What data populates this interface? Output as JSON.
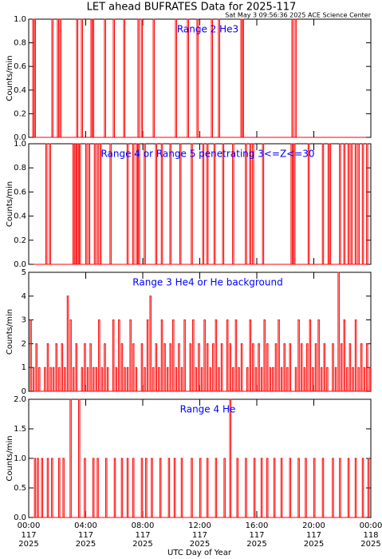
{
  "header": {
    "title": "LET ahead BUFRATES Data for 2025-117",
    "subtitle": "Sat May  3 09:56:36 2025 ACE Science Center"
  },
  "x_axis": {
    "label": "UTC Day of Year",
    "xlim": [
      0,
      24
    ],
    "ticks": [
      {
        "value": 0,
        "label": "00:00",
        "day": "117",
        "year": "2025"
      },
      {
        "value": 4,
        "label": "04:00",
        "day": "117",
        "year": "2025"
      },
      {
        "value": 8,
        "label": "08:00",
        "day": "117",
        "year": "2025"
      },
      {
        "value": 12,
        "label": "12:00",
        "day": "117",
        "year": "2025"
      },
      {
        "value": 16,
        "label": "16:00",
        "day": "117",
        "year": "2025"
      },
      {
        "value": 20,
        "label": "20:00",
        "day": "117",
        "year": "2025"
      },
      {
        "value": 24,
        "label": "00:00",
        "day": "118",
        "year": "2025"
      }
    ]
  },
  "chart_data": [
    {
      "type": "spike",
      "title": "Range 2 He3",
      "ylabel": "Counts/min",
      "color": "#ff0000",
      "title_color": "#0000ff",
      "ylim": [
        0,
        1
      ],
      "yticks": [
        {
          "value": 0,
          "label": "0.0"
        },
        {
          "value": 0.2,
          "label": "0.2"
        },
        {
          "value": 0.4,
          "label": "0.4"
        },
        {
          "value": 0.6,
          "label": "0.6"
        },
        {
          "value": 0.8,
          "label": "0.8"
        },
        {
          "value": 1,
          "label": "1.0"
        }
      ],
      "x": [
        0.28,
        0.39,
        1.62,
        2.01,
        2.18,
        3.36,
        3.69,
        4.36,
        4.48,
        5.31,
        5.93,
        6.66,
        7.66,
        7.89,
        8.73,
        10.29,
        11.13,
        11.8,
        12.81,
        13.31,
        14.88,
        14.99,
        18.46,
        18.68
      ],
      "values": [
        1,
        1,
        1,
        1,
        1,
        1,
        1,
        1,
        1,
        1,
        1,
        1,
        1,
        1,
        1,
        1,
        1,
        1,
        1,
        1,
        1,
        1,
        1,
        1
      ]
    },
    {
      "type": "spike",
      "title": "Range 4 or Range 5 penetrating 3<=Z<=30",
      "ylabel": "Counts/min",
      "color": "#ff0000",
      "title_color": "#0000ff",
      "ylim": [
        0,
        1
      ],
      "yticks": [
        {
          "value": 0,
          "label": "0.0"
        },
        {
          "value": 0.2,
          "label": "0.2"
        },
        {
          "value": 0.4,
          "label": "0.4"
        },
        {
          "value": 0.6,
          "label": "0.6"
        },
        {
          "value": 0.8,
          "label": "0.8"
        },
        {
          "value": 1,
          "label": "1.0"
        }
      ],
      "x": [
        1.2,
        1.45,
        3.1,
        3.25,
        3.4,
        3.55,
        4.0,
        4.2,
        4.6,
        4.8,
        5.0,
        5.7,
        6.9,
        7.3,
        7.55,
        7.7,
        8.1,
        8.9,
        9.3,
        9.9,
        10.6,
        11.4,
        12.2,
        12.5,
        13.0,
        13.6,
        14.3,
        15.2,
        15.5,
        15.7,
        16.4,
        18.4,
        18.5,
        18.6,
        19.6,
        20.6,
        21.0,
        21.1,
        21.8,
        22.1,
        22.4,
        22.6,
        22.9,
        23.1,
        23.4,
        23.7
      ],
      "values": [
        1,
        1,
        1,
        1,
        1,
        1,
        1,
        1,
        1,
        1,
        1,
        1,
        1,
        1,
        1,
        1,
        1,
        1,
        1,
        1,
        1,
        1,
        1,
        1,
        1,
        1,
        1,
        1,
        1,
        1,
        1,
        1,
        1,
        1,
        1,
        1,
        1,
        1,
        1,
        1,
        1,
        1,
        1,
        1,
        1,
        1
      ]
    },
    {
      "type": "spike",
      "title": "Range 3 He4 or He background",
      "ylabel": "Counts/min",
      "color": "#ff0000",
      "title_color": "#0000ff",
      "ylim": [
        0,
        5
      ],
      "yticks": [
        0,
        1,
        2,
        3,
        4,
        5
      ],
      "x": [
        0.1,
        0.3,
        0.5,
        0.7,
        0.9,
        1.1,
        1.3,
        1.5,
        1.7,
        1.9,
        2.1,
        2.3,
        2.5,
        2.7,
        2.9,
        3.1,
        3.3,
        3.5,
        3.7,
        3.9,
        4.1,
        4.3,
        4.5,
        4.7,
        4.9,
        5.1,
        5.3,
        5.5,
        5.7,
        5.9,
        6.1,
        6.3,
        6.5,
        6.7,
        6.9,
        7.1,
        7.3,
        7.5,
        7.7,
        7.9,
        8.1,
        8.3,
        8.5,
        8.7,
        8.9,
        9.1,
        9.3,
        9.5,
        9.7,
        9.9,
        10.1,
        10.3,
        10.5,
        10.7,
        10.9,
        11.1,
        11.3,
        11.5,
        11.7,
        11.9,
        12.1,
        12.3,
        12.5,
        12.7,
        12.9,
        13.1,
        13.3,
        13.5,
        13.7,
        13.9,
        14.1,
        14.3,
        14.5,
        14.7,
        14.9,
        15.1,
        15.3,
        15.5,
        15.7,
        15.9,
        16.1,
        16.3,
        16.5,
        16.7,
        16.9,
        17.1,
        17.3,
        17.5,
        17.7,
        17.9,
        18.1,
        18.3,
        18.5,
        18.7,
        18.9,
        19.1,
        19.3,
        19.5,
        19.7,
        19.9,
        20.1,
        20.3,
        20.5,
        20.7,
        20.9,
        21.1,
        21.3,
        21.5,
        21.7,
        21.9,
        22.1,
        22.3,
        22.5,
        22.7,
        22.9,
        23.1,
        23.3,
        23.5,
        23.7,
        23.9
      ],
      "values": [
        3,
        1,
        2,
        1,
        0,
        1,
        2,
        1,
        1,
        2,
        1,
        2,
        1,
        4,
        3,
        1,
        2,
        0,
        1,
        2,
        1,
        2,
        1,
        1,
        3,
        1,
        2,
        1,
        0,
        3,
        1,
        3,
        2,
        1,
        1,
        3,
        2,
        1,
        0,
        2,
        1,
        3,
        4,
        1,
        2,
        1,
        3,
        2,
        1,
        2,
        3,
        1,
        2,
        1,
        3,
        0,
        2,
        3,
        1,
        2,
        1,
        3,
        2,
        1,
        2,
        3,
        1,
        2,
        0,
        3,
        2,
        1,
        3,
        1,
        2,
        0,
        1,
        3,
        2,
        1,
        2,
        1,
        3,
        2,
        1,
        1,
        2,
        3,
        1,
        2,
        1,
        2,
        0,
        1,
        3,
        2,
        1,
        2,
        3,
        1,
        2,
        3,
        1,
        2,
        1,
        0,
        2,
        1,
        5,
        2,
        3,
        1,
        2,
        1,
        3,
        1,
        2,
        1,
        2,
        1
      ]
    },
    {
      "type": "spike",
      "title": "Range 4 He",
      "ylabel": "Counts/min",
      "color": "#ff0000",
      "title_color": "#0000ff",
      "ylim": [
        0,
        2
      ],
      "yticks": [
        {
          "value": 0,
          "label": "0.0"
        },
        {
          "value": 0.5,
          "label": "0.5"
        },
        {
          "value": 1,
          "label": "1.0"
        },
        {
          "value": 1.5,
          "label": "1.5"
        },
        {
          "value": 2,
          "label": "2.0"
        }
      ],
      "x": [
        0.4,
        0.6,
        0.9,
        1.3,
        1.6,
        2.1,
        2.4,
        2.9,
        3.5,
        3.9,
        4.5,
        4.8,
        5.4,
        6.0,
        6.5,
        6.9,
        7.3,
        7.9,
        8.2,
        8.6,
        9.2,
        9.8,
        10.2,
        10.7,
        11.4,
        12.0,
        12.5,
        13.1,
        13.7,
        14.1,
        14.6,
        15.2,
        15.8,
        16.3,
        16.7,
        17.2,
        17.7,
        18.3,
        18.9,
        19.4,
        20.0,
        20.6,
        21.3,
        21.8,
        22.4,
        22.9,
        23.4,
        23.8
      ],
      "values": [
        1,
        1,
        1,
        1,
        1,
        1,
        1,
        2,
        2,
        1,
        1,
        1,
        1,
        1,
        1,
        1,
        1,
        1,
        1,
        1,
        1,
        1,
        1,
        1,
        1,
        1,
        1,
        1,
        1,
        2,
        1,
        1,
        1,
        1,
        1,
        1,
        1,
        1,
        1,
        1,
        1,
        1,
        1,
        1,
        1,
        1,
        1,
        1
      ]
    }
  ]
}
